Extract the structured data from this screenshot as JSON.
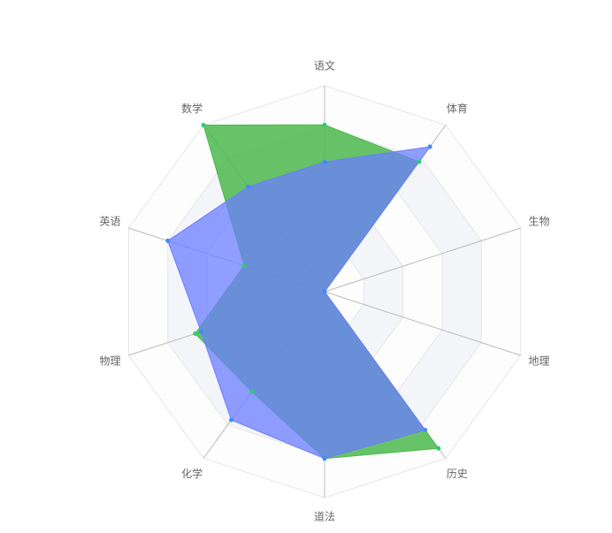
{
  "chart_data": {
    "type": "radar",
    "categories": [
      "语文",
      "体育",
      "生物",
      "地理",
      "历史",
      "道法",
      "化学",
      "物理",
      "英语",
      "数学"
    ],
    "ylim": [
      0,
      100
    ],
    "series": [
      {
        "color": "#4cb84c",
        "values": [
          81,
          78,
          0,
          0,
          94,
          81,
          60,
          66,
          41,
          100
        ]
      },
      {
        "color": "#6b7dff",
        "values": [
          63,
          87,
          0,
          0,
          83,
          81,
          77,
          63,
          80,
          63
        ]
      }
    ]
  }
}
